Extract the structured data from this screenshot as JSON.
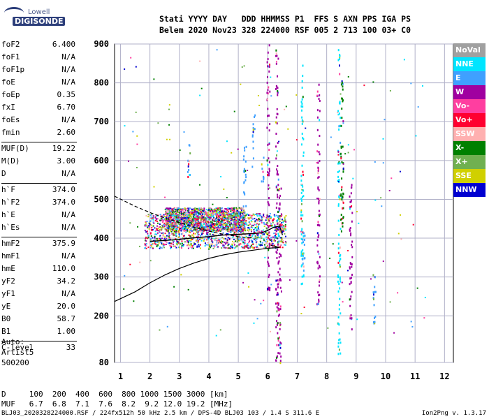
{
  "logo": {
    "line1": "Lowell",
    "line2": "DIGISONDE"
  },
  "header": {
    "line1": "Stati YYYY DAY   DDD HHMMSS P1  FFS S AXN PPS IGA PS",
    "line2": "Belem 2020 Nov23 328 224000 RSF 005 2 713 100 03+ C0"
  },
  "params_group1": [
    {
      "k": "foF2",
      "v": "6.400"
    },
    {
      "k": "foF1",
      "v": "N/A"
    },
    {
      "k": "foF1p",
      "v": "N/A"
    },
    {
      "k": "foE",
      "v": "N/A"
    },
    {
      "k": "foEp",
      "v": "0.35"
    },
    {
      "k": "fxI",
      "v": "6.70"
    },
    {
      "k": "foEs",
      "v": "N/A"
    },
    {
      "k": "fmin",
      "v": "2.60"
    }
  ],
  "params_group2": [
    {
      "k": "MUF(D)",
      "v": "19.22"
    },
    {
      "k": "M(D)",
      "v": "3.00"
    },
    {
      "k": "D",
      "v": "N/A"
    }
  ],
  "params_group3": [
    {
      "k": "h`F",
      "v": "374.0"
    },
    {
      "k": "h`F2",
      "v": "374.0"
    },
    {
      "k": "h`E",
      "v": "N/A"
    },
    {
      "k": "h`Es",
      "v": "N/A"
    }
  ],
  "params_group4": [
    {
      "k": "hmF2",
      "v": "375.9"
    },
    {
      "k": "hmF1",
      "v": "N/A"
    },
    {
      "k": "hmE",
      "v": "110.0"
    },
    {
      "k": "yF2",
      "v": "34.2"
    },
    {
      "k": "yF1",
      "v": "N/A"
    },
    {
      "k": "yE",
      "v": "20.0"
    },
    {
      "k": "B0",
      "v": "58.7"
    },
    {
      "k": "B1",
      "v": "1.00"
    }
  ],
  "params_group5": [
    {
      "k": "C-level",
      "v": "33"
    }
  ],
  "auto": {
    "line1": "Auto:",
    "line2": "Artist5",
    "line3": "500200"
  },
  "legend": [
    {
      "label": "NoVal",
      "color": "#a0a0a0"
    },
    {
      "label": "NNE",
      "color": "#00e5ff"
    },
    {
      "label": "E",
      "color": "#3fa0ff"
    },
    {
      "label": "W",
      "color": "#a000a0"
    },
    {
      "label": "Vo-",
      "color": "#ff3ea0"
    },
    {
      "label": "Vo+",
      "color": "#ff0030"
    },
    {
      "label": "SSW",
      "color": "#ffb0b0"
    },
    {
      "label": "X-",
      "color": "#008000"
    },
    {
      "label": "X+",
      "color": "#70b050"
    },
    {
      "label": "SSE",
      "color": "#d0d000"
    },
    {
      "label": "NNW",
      "color": "#0000d0"
    }
  ],
  "chart_data": {
    "type": "scatter",
    "xlabel": "",
    "ylabel": "",
    "xlim": [
      0.8,
      12.3
    ],
    "ylim": [
      80,
      900
    ],
    "x_ticks": [
      "1",
      "2",
      "3",
      "4",
      "5",
      "6",
      "7",
      "8",
      "9",
      "10",
      "11",
      "12"
    ],
    "y_ticks": [
      "80",
      "200",
      "300",
      "400",
      "500",
      "600",
      "700",
      "800",
      "900"
    ],
    "y_tick_values": [
      80,
      200,
      300,
      400,
      500,
      600,
      700,
      800,
      900
    ],
    "grid": true,
    "trace_frequency_bands": [
      {
        "from": 1.8,
        "to": 6.6,
        "h_low": 375,
        "h_high": 465
      },
      {
        "from": 2.5,
        "to": 5.2,
        "h_low": 420,
        "h_high": 480
      }
    ],
    "profile_curve": [
      [
        0.8,
        237
      ],
      [
        1.5,
        262
      ],
      [
        2.0,
        285
      ],
      [
        2.5,
        305
      ],
      [
        3.0,
        322
      ],
      [
        3.5,
        336
      ],
      [
        4.0,
        348
      ],
      [
        4.5,
        357
      ],
      [
        5.0,
        364
      ],
      [
        5.5,
        369
      ],
      [
        6.0,
        374
      ],
      [
        6.4,
        376
      ],
      [
        6.1,
        382
      ]
    ],
    "dashed_curve": [
      [
        0.8,
        508
      ],
      [
        1.5,
        482
      ],
      [
        2.0,
        466
      ],
      [
        2.5,
        452
      ],
      [
        3.0,
        440
      ],
      [
        3.5,
        428
      ],
      [
        4.0,
        418
      ],
      [
        4.5,
        410
      ],
      [
        5.0,
        404
      ],
      [
        5.5,
        400
      ]
    ],
    "scaled_trace": [
      [
        2.0,
        392
      ],
      [
        2.5,
        394
      ],
      [
        3.0,
        397
      ],
      [
        3.5,
        401
      ],
      [
        4.0,
        404
      ],
      [
        4.5,
        408
      ],
      [
        5.0,
        410
      ],
      [
        5.5,
        412
      ],
      [
        5.8,
        414
      ],
      [
        6.0,
        420
      ],
      [
        6.2,
        428
      ],
      [
        6.4,
        431
      ],
      [
        6.5,
        408
      ]
    ],
    "vertical_traces": [
      {
        "x": 3.3,
        "h_low": 560,
        "h_high": 680,
        "color": "#3fa0ff"
      },
      {
        "x": 5.2,
        "h_low": 430,
        "h_high": 640,
        "color": "#3fa0ff"
      },
      {
        "x": 5.5,
        "h_low": 580,
        "h_high": 720,
        "color": "#3fa0ff"
      },
      {
        "x": 5.8,
        "h_low": 540,
        "h_high": 620,
        "color": "#3fa0ff"
      },
      {
        "x": 6.0,
        "h_low": 260,
        "h_high": 900,
        "color": "#a000a0"
      },
      {
        "x": 6.3,
        "h_low": 80,
        "h_high": 890,
        "color": "#a000a0"
      },
      {
        "x": 6.4,
        "h_low": 80,
        "h_high": 540,
        "color": "#a000a0"
      },
      {
        "x": 7.15,
        "h_low": 280,
        "h_high": 850,
        "color": "#00e5ff"
      },
      {
        "x": 7.2,
        "h_low": 300,
        "h_high": 430,
        "color": "#3fa0ff"
      },
      {
        "x": 7.7,
        "h_low": 230,
        "h_high": 820,
        "color": "#a000a0"
      },
      {
        "x": 8.4,
        "h_low": 100,
        "h_high": 890,
        "color": "#00e5ff"
      },
      {
        "x": 8.5,
        "h_low": 420,
        "h_high": 820,
        "color": "#008000"
      },
      {
        "x": 8.8,
        "h_low": 160,
        "h_high": 560,
        "color": "#a000a0"
      },
      {
        "x": 9.6,
        "h_low": 180,
        "h_high": 320,
        "color": "#3fa0ff"
      }
    ]
  },
  "dtable": {
    "row1": "D     100  200  400  600  800 1000 1500 3000 [km]",
    "row2": "MUF   6.7  6.8  7.1  7.6  8.2  9.2 12.0 19.2 [MHz]"
  },
  "footer": "BLJ03_2020328224000.RSF / 224fx512h 50 kHz 2.5 km / DPS-4D BLJ03 103 / 1.4 S 311.6 E",
  "version": "Ion2Png v. 1.3.17"
}
